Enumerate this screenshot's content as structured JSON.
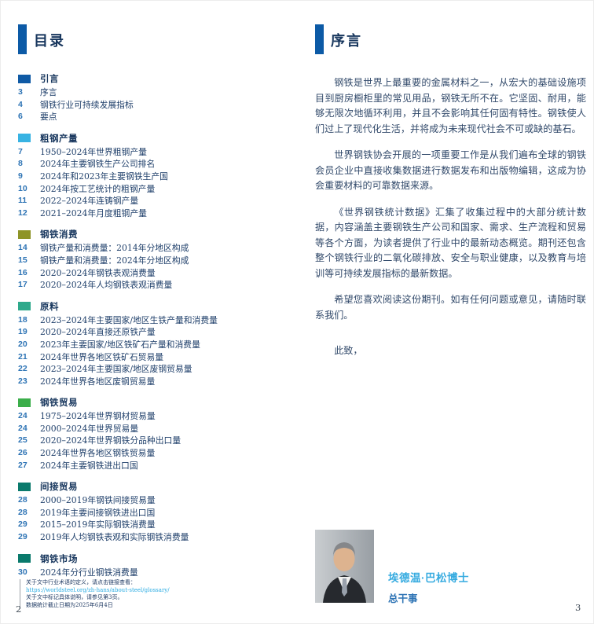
{
  "colors": {
    "accent_bar": "#0C5AA6",
    "heading_navy": "#17365D",
    "page_number_blue": "#2E74B5",
    "link_blue": "#29ABE2",
    "name_light_blue": "#36ABE0"
  },
  "page_left": {
    "page_number": "2",
    "header_title": "目录",
    "sections": [
      {
        "label": "引言",
        "color": "#0F5AA5",
        "items": [
          {
            "page": "3",
            "title": "序言"
          },
          {
            "page": "4",
            "title": "钢铁行业可持续发展指标"
          },
          {
            "page": "6",
            "title": "要点"
          }
        ]
      },
      {
        "label": "粗钢产量",
        "color": "#38B3E3",
        "items": [
          {
            "page": "7",
            "title": "1950–2024年世界粗钢产量"
          },
          {
            "page": "8",
            "title": "2024年主要钢铁生产公司排名"
          },
          {
            "page": "9",
            "title": "2024年和2023年主要钢铁生产国"
          },
          {
            "page": "10",
            "title": "2024年按工艺统计的粗钢产量"
          },
          {
            "page": "11",
            "title": "2022–2024年连铸钢产量"
          },
          {
            "page": "12",
            "title": "2021–2024年月度粗钢产量"
          }
        ]
      },
      {
        "label": "钢铁消费",
        "color": "#8E9427",
        "items": [
          {
            "page": "14",
            "title": "钢铁产量和消费量：2014年分地区构成"
          },
          {
            "page": "15",
            "title": "钢铁产量和消费量：2024年分地区构成"
          },
          {
            "page": "16",
            "title": "2020–2024年钢铁表观消费量"
          },
          {
            "page": "17",
            "title": "2020–2024年人均钢铁表观消费量"
          }
        ]
      },
      {
        "label": "原料",
        "color": "#2EA98B",
        "items": [
          {
            "page": "18",
            "title": "2023–2024年主要国家/地区生铁产量和消费量"
          },
          {
            "page": "19",
            "title": "2020–2024年直接还原铁产量"
          },
          {
            "page": "20",
            "title": "2023年主要国家/地区铁矿石产量和消费量"
          },
          {
            "page": "21",
            "title": "2024年世界各地区铁矿石贸易量"
          },
          {
            "page": "22",
            "title": "2023–2024年主要国家/地区废钢贸易量"
          },
          {
            "page": "23",
            "title": "2024年世界各地区废钢贸易量"
          }
        ]
      },
      {
        "label": "钢铁贸易",
        "color": "#3BAE4A",
        "items": [
          {
            "page": "24",
            "title": "1975–2024年世界钢材贸易量"
          },
          {
            "page": "24",
            "title": "2000–2024年世界贸易量"
          },
          {
            "page": "25",
            "title": "2020–2024年世界钢铁分品种出口量"
          },
          {
            "page": "26",
            "title": "2024年世界各地区钢铁贸易量"
          },
          {
            "page": "27",
            "title": "2024年主要钢铁进出口国"
          }
        ]
      },
      {
        "label": "间接贸易",
        "color": "#0A7A6C",
        "items": [
          {
            "page": "28",
            "title": "2000–2019年钢铁间接贸易量"
          },
          {
            "page": "28",
            "title": "2019年主要间接钢铁进出口国"
          },
          {
            "page": "29",
            "title": "2015–2019年实际钢铁消费量"
          },
          {
            "page": "29",
            "title": "2019年人均钢铁表观和实际钢铁消费量"
          }
        ]
      },
      {
        "label": "钢铁市场",
        "color": "#0A7A6C",
        "items": [
          {
            "page": "30",
            "title": "2024年分行业钢铁消费量"
          }
        ]
      }
    ],
    "footnotes": {
      "line1": "关于文中行业术语的定义，请点击链接查看：",
      "link": "https://worldsteel.org/zh-hans/about-steel/glossary/",
      "line2": "关于文中标记具体说明，请参见第3页。",
      "line3": "数据统计截止日期为2025年6月4日"
    }
  },
  "page_right": {
    "page_number": "3",
    "header_title": "序言",
    "paragraphs": [
      "钢铁是世界上最重要的金属材料之一，从宏大的基础设施项目到厨房橱柜里的常见用品，钢铁无所不在。它坚固、耐用，能够无限次地循环利用，并且不会影响其任何固有特性。钢铁使人们过上了现代化生活，并将成为未来现代社会不可或缺的基石。",
      "世界钢铁协会开展的一项重要工作是从我们遍布全球的钢铁会员企业中直接收集数据进行数据发布和出版物编辑，这成为协会重要材料的可靠数据来源。",
      "《世界钢铁统计数据》汇集了收集过程中的大部分统计数据，内容涵盖主要钢铁生产公司和国家、需求、生产流程和贸易等各个方面，为读者提供了行业中的最新动态概览。期刊还包含整个钢铁行业的二氧化碳排放、安全与职业健康，以及教育与培训等可持续发展指标的最新数据。",
      "希望您喜欢阅读这份期刊。如有任何问题或意见，请随时联系我们。"
    ],
    "closing": "此致，",
    "signature": {
      "photo": "portrait-of-director-general",
      "name": "埃德温·巴松博士",
      "title": "总干事"
    }
  }
}
